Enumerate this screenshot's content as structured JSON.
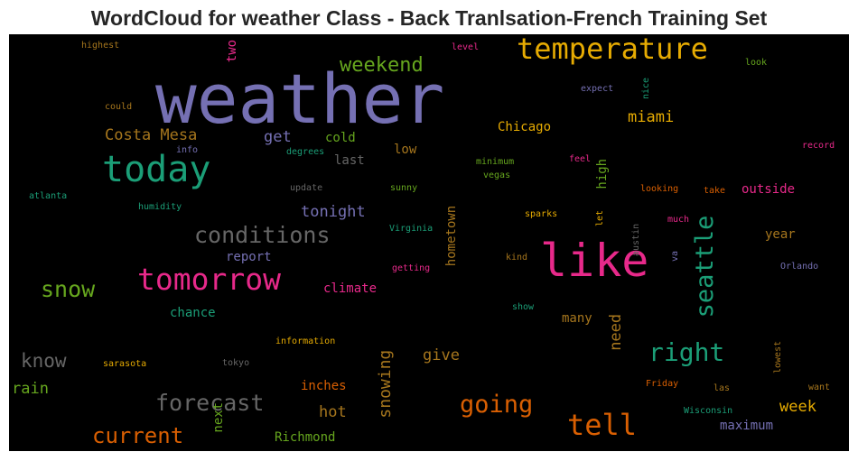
{
  "chart_data": {
    "type": "wordcloud",
    "title": "WordCloud for weather Class - Back Tranlsation-French Training Set",
    "background": "#000000",
    "palette": {
      "purple": "#7570b3",
      "green": "#66a61e",
      "gold": "#e6ab02",
      "teal": "#1b9e77",
      "pink": "#e7298a",
      "orange": "#d95f02",
      "gray": "#666666",
      "brown": "#a6761d"
    },
    "words": [
      {
        "text": "weather",
        "weight": 100,
        "color": "purple"
      },
      {
        "text": "like",
        "weight": 66,
        "color": "pink"
      },
      {
        "text": "today",
        "weight": 53,
        "color": "teal"
      },
      {
        "text": "tomorrow",
        "weight": 44,
        "color": "pink"
      },
      {
        "text": "temperature",
        "weight": 42,
        "color": "gold"
      },
      {
        "text": "tell",
        "weight": 42,
        "color": "orange"
      },
      {
        "text": "right",
        "weight": 37,
        "color": "teal"
      },
      {
        "text": "seattle",
        "weight": 35,
        "color": "teal"
      },
      {
        "text": "going",
        "weight": 35,
        "color": "orange"
      },
      {
        "text": "conditions",
        "weight": 33,
        "color": "gray"
      },
      {
        "text": "snow",
        "weight": 33,
        "color": "green"
      },
      {
        "text": "forecast",
        "weight": 33,
        "color": "gray"
      },
      {
        "text": "current",
        "weight": 31,
        "color": "orange"
      },
      {
        "text": "weekend",
        "weight": 29,
        "color": "green"
      },
      {
        "text": "know",
        "weight": 27,
        "color": "gray"
      },
      {
        "text": "snowing",
        "weight": 24,
        "color": "brown"
      },
      {
        "text": "Costa Mesa",
        "weight": 22,
        "color": "brown"
      },
      {
        "text": "miami",
        "weight": 22,
        "color": "gold"
      },
      {
        "text": "get",
        "weight": 22,
        "color": "purple"
      },
      {
        "text": "tonight",
        "weight": 22,
        "color": "purple"
      },
      {
        "text": "rain",
        "weight": 22,
        "color": "green"
      },
      {
        "text": "need",
        "weight": 22,
        "color": "brown"
      },
      {
        "text": "hot",
        "weight": 22,
        "color": "brown"
      },
      {
        "text": "give",
        "weight": 22,
        "color": "brown"
      },
      {
        "text": "week",
        "weight": 22,
        "color": "gold"
      },
      {
        "text": "two",
        "weight": 18,
        "color": "pink"
      },
      {
        "text": "Chicago",
        "weight": 18,
        "color": "gold"
      },
      {
        "text": "cold",
        "weight": 18,
        "color": "green"
      },
      {
        "text": "last",
        "weight": 18,
        "color": "gray"
      },
      {
        "text": "low",
        "weight": 18,
        "color": "brown"
      },
      {
        "text": "high",
        "weight": 18,
        "color": "green"
      },
      {
        "text": "outside",
        "weight": 18,
        "color": "pink"
      },
      {
        "text": "year",
        "weight": 18,
        "color": "brown"
      },
      {
        "text": "report",
        "weight": 18,
        "color": "purple"
      },
      {
        "text": "climate",
        "weight": 18,
        "color": "pink"
      },
      {
        "text": "chance",
        "weight": 18,
        "color": "teal"
      },
      {
        "text": "hometown",
        "weight": 18,
        "color": "brown"
      },
      {
        "text": "many",
        "weight": 18,
        "color": "brown"
      },
      {
        "text": "inches",
        "weight": 18,
        "color": "orange"
      },
      {
        "text": "maximum",
        "weight": 18,
        "color": "purple"
      },
      {
        "text": "next",
        "weight": 18,
        "color": "green"
      },
      {
        "text": "Richmond",
        "weight": 18,
        "color": "green"
      },
      {
        "text": "highest",
        "weight": 13,
        "color": "brown"
      },
      {
        "text": "level",
        "weight": 13,
        "color": "pink"
      },
      {
        "text": "look",
        "weight": 13,
        "color": "green"
      },
      {
        "text": "expect",
        "weight": 13,
        "color": "purple"
      },
      {
        "text": "nice",
        "weight": 13,
        "color": "teal"
      },
      {
        "text": "could",
        "weight": 13,
        "color": "brown"
      },
      {
        "text": "info",
        "weight": 13,
        "color": "purple"
      },
      {
        "text": "degrees",
        "weight": 13,
        "color": "teal"
      },
      {
        "text": "minimum",
        "weight": 13,
        "color": "green"
      },
      {
        "text": "vegas",
        "weight": 13,
        "color": "green"
      },
      {
        "text": "feel",
        "weight": 13,
        "color": "pink"
      },
      {
        "text": "record",
        "weight": 13,
        "color": "pink"
      },
      {
        "text": "atlanta",
        "weight": 13,
        "color": "teal"
      },
      {
        "text": "update",
        "weight": 13,
        "color": "gray"
      },
      {
        "text": "sunny",
        "weight": 13,
        "color": "green"
      },
      {
        "text": "looking",
        "weight": 13,
        "color": "orange"
      },
      {
        "text": "take",
        "weight": 13,
        "color": "orange"
      },
      {
        "text": "humidity",
        "weight": 13,
        "color": "teal"
      },
      {
        "text": "sparks",
        "weight": 13,
        "color": "gold"
      },
      {
        "text": "let",
        "weight": 13,
        "color": "gold"
      },
      {
        "text": "austin",
        "weight": 13,
        "color": "gray"
      },
      {
        "text": "much",
        "weight": 13,
        "color": "pink"
      },
      {
        "text": "Virginia",
        "weight": 13,
        "color": "teal"
      },
      {
        "text": "kind",
        "weight": 13,
        "color": "brown"
      },
      {
        "text": "va",
        "weight": 13,
        "color": "purple"
      },
      {
        "text": "getting",
        "weight": 13,
        "color": "pink"
      },
      {
        "text": "Orlando",
        "weight": 13,
        "color": "purple"
      },
      {
        "text": "show",
        "weight": 13,
        "color": "teal"
      },
      {
        "text": "information",
        "weight": 13,
        "color": "gold"
      },
      {
        "text": "lowest",
        "weight": 13,
        "color": "brown"
      },
      {
        "text": "sarasota",
        "weight": 13,
        "color": "gold"
      },
      {
        "text": "tokyo",
        "weight": 13,
        "color": "gray"
      },
      {
        "text": "Friday",
        "weight": 13,
        "color": "orange"
      },
      {
        "text": "las",
        "weight": 13,
        "color": "brown"
      },
      {
        "text": "want",
        "weight": 13,
        "color": "brown"
      },
      {
        "text": "Wisconsin",
        "weight": 13,
        "color": "teal"
      }
    ]
  }
}
